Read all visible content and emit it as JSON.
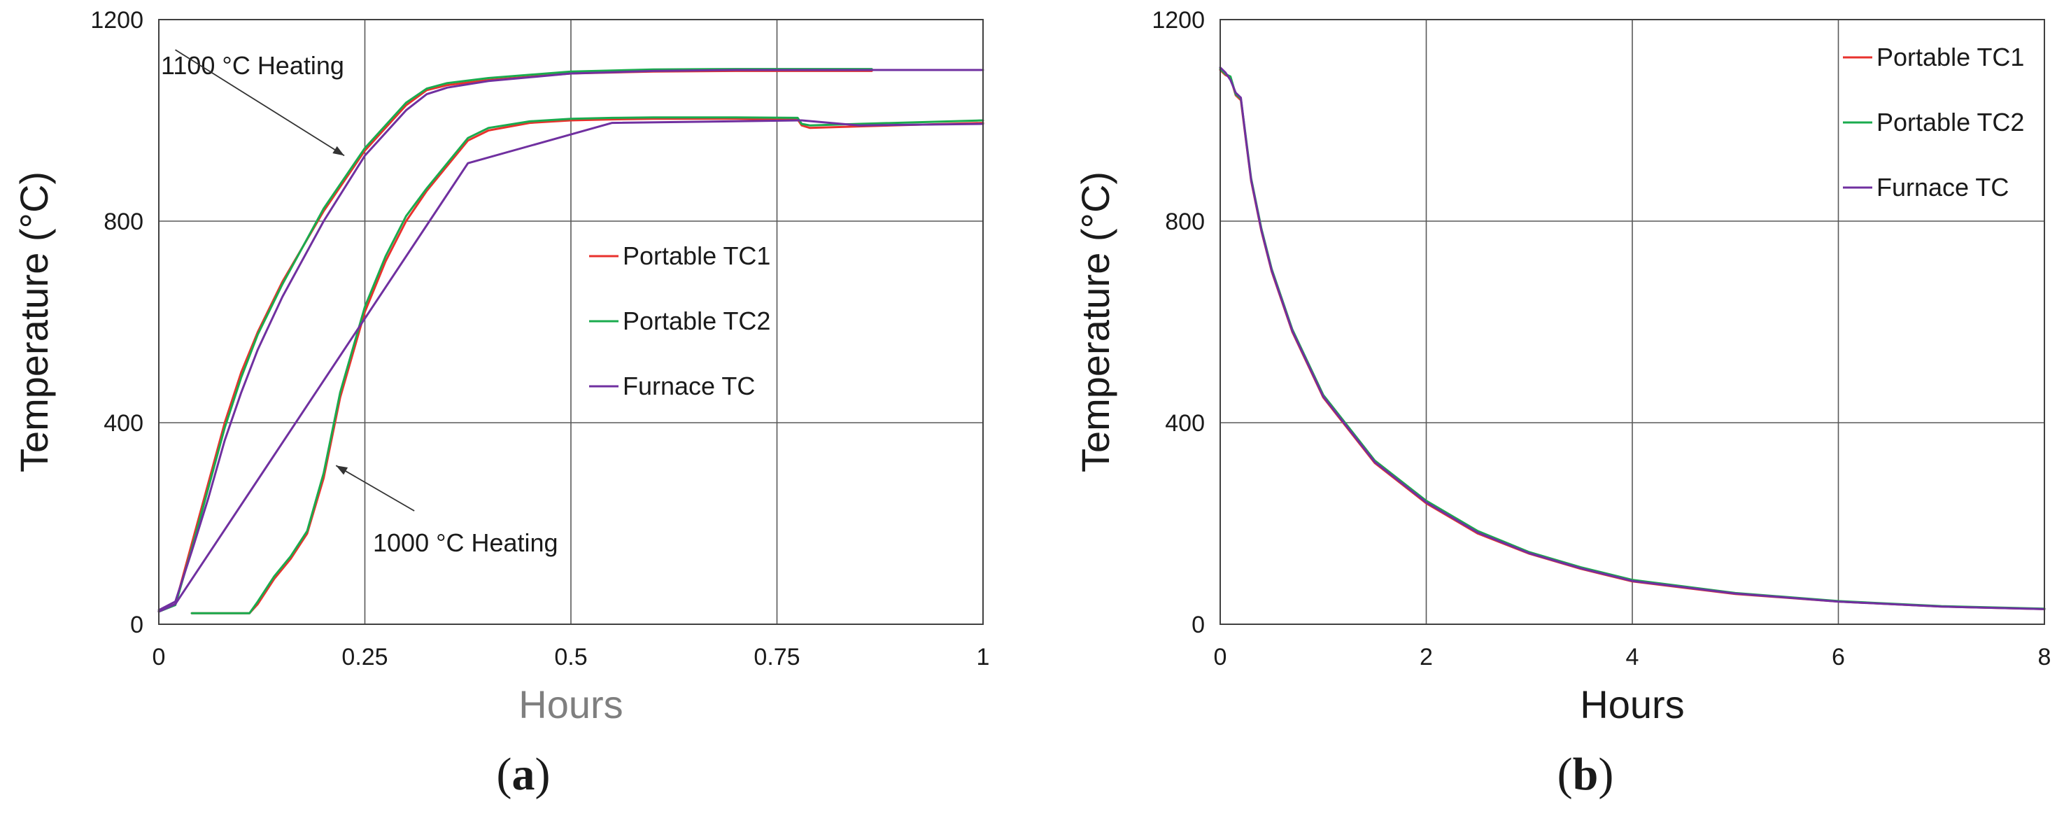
{
  "chart_data": [
    {
      "id": "a",
      "type": "line",
      "panel_label": {
        "open": "(",
        "letter": "a",
        "close": ")"
      },
      "xlabel": "Hours",
      "ylabel": "Temperature (°C)",
      "xlim": [
        0,
        1
      ],
      "ylim": [
        0,
        1200
      ],
      "xticks": [
        0,
        0.25,
        0.5,
        0.75,
        1
      ],
      "xtick_labels": [
        "0",
        "0.25",
        "0.5",
        "0.75",
        "1"
      ],
      "yticks": [
        0,
        400,
        800,
        1200
      ],
      "ytick_labels": [
        "0",
        "400",
        "800",
        "1200"
      ],
      "grid": true,
      "legend": {
        "placement": "center-right",
        "entries": [
          "Portable TC1",
          "Portable TC2",
          "Furnace TC"
        ]
      },
      "annotations": [
        {
          "text": "1100 °C Heating",
          "from": [
            0.02,
            1140
          ],
          "to": [
            0.225,
            930
          ]
        },
        {
          "text": "1000 °C Heating",
          "from": [
            0.31,
            225
          ],
          "to": [
            0.215,
            315
          ]
        }
      ],
      "series": [
        {
          "name": "Portable TC1",
          "color": "#e8322d",
          "x": [
            0,
            0.02,
            0.04,
            0.06,
            0.08,
            0.1,
            0.12,
            0.15,
            0.2,
            0.25,
            0.3,
            0.325,
            0.35,
            0.4,
            0.5,
            0.6,
            0.7,
            0.8,
            0.865
          ],
          "y": [
            25,
            40,
            160,
            280,
            400,
            500,
            580,
            680,
            820,
            940,
            1030,
            1060,
            1070,
            1080,
            1093,
            1097,
            1098,
            1098,
            1098
          ]
        },
        {
          "name": "Portable TC1",
          "color": "#e8322d",
          "x": [
            0.04,
            0.11,
            0.12,
            0.14,
            0.16,
            0.18,
            0.2,
            0.22,
            0.25,
            0.275,
            0.3,
            0.325,
            0.35,
            0.375,
            0.4,
            0.45,
            0.5,
            0.55,
            0.6,
            0.7,
            0.775,
            0.78,
            0.79,
            0.85,
            1
          ],
          "y": [
            22,
            22,
            40,
            90,
            130,
            180,
            290,
            450,
            620,
            720,
            800,
            860,
            910,
            960,
            980,
            995,
            1000,
            1002,
            1003,
            1003,
            1002,
            990,
            985,
            988,
            995
          ]
        },
        {
          "name": "Portable TC2",
          "color": "#1aab4e",
          "x": [
            0,
            0.02,
            0.04,
            0.06,
            0.08,
            0.1,
            0.12,
            0.15,
            0.2,
            0.25,
            0.3,
            0.325,
            0.35,
            0.4,
            0.5,
            0.6,
            0.7,
            0.8,
            0.865
          ],
          "y": [
            25,
            38,
            150,
            270,
            390,
            490,
            575,
            675,
            825,
            945,
            1035,
            1063,
            1074,
            1084,
            1097,
            1101,
            1102,
            1102,
            1102
          ]
        },
        {
          "name": "Portable TC2",
          "color": "#1aab4e",
          "x": [
            0.04,
            0.11,
            0.12,
            0.14,
            0.16,
            0.18,
            0.2,
            0.22,
            0.25,
            0.275,
            0.3,
            0.325,
            0.35,
            0.375,
            0.4,
            0.45,
            0.5,
            0.55,
            0.6,
            0.7,
            0.775,
            0.78,
            0.79,
            0.85,
            1
          ],
          "y": [
            22,
            22,
            45,
            95,
            135,
            185,
            300,
            460,
            630,
            730,
            810,
            865,
            915,
            965,
            985,
            998,
            1003,
            1005,
            1006,
            1006,
            1005,
            993,
            990,
            993,
            1000
          ]
        },
        {
          "name": "Furnace TC",
          "color": "#7030a0",
          "x": [
            0,
            0.02,
            0.04,
            0.06,
            0.08,
            0.1,
            0.12,
            0.15,
            0.2,
            0.25,
            0.3,
            0.325,
            0.35,
            0.4,
            0.5,
            0.6,
            0.7,
            0.8,
            0.9,
            1
          ],
          "y": [
            28,
            45,
            145,
            250,
            365,
            460,
            545,
            650,
            800,
            930,
            1020,
            1052,
            1065,
            1078,
            1093,
            1098,
            1100,
            1100,
            1100,
            1100
          ]
        },
        {
          "name": "Furnace TC",
          "color": "#7030a0",
          "x": [
            0,
            0.02,
            0.375,
            0.55,
            0.78,
            0.85,
            1
          ],
          "y": [
            25,
            40,
            915,
            995,
            1000,
            990,
            993
          ]
        }
      ]
    },
    {
      "id": "b",
      "type": "line",
      "panel_label": {
        "open": "(",
        "letter": "b",
        "close": ")"
      },
      "xlabel": "Hours",
      "ylabel": "Temperature (°C)",
      "xlim": [
        0,
        8
      ],
      "ylim": [
        0,
        1200
      ],
      "xticks": [
        0,
        2,
        4,
        6,
        8
      ],
      "xtick_labels": [
        "0",
        "2",
        "4",
        "6",
        "8"
      ],
      "yticks": [
        0,
        400,
        800,
        1200
      ],
      "ytick_labels": [
        "0",
        "400",
        "800",
        "1200"
      ],
      "grid": true,
      "legend": {
        "placement": "top-right",
        "entries": [
          "Portable TC1",
          "Portable TC2",
          "Furnace TC"
        ]
      },
      "series": [
        {
          "name": "Portable TC1",
          "color": "#e8322d",
          "x": [
            0,
            0.05,
            0.1,
            0.15,
            0.2,
            0.25,
            0.3,
            0.4,
            0.5,
            0.7,
            1,
            1.5,
            2,
            2.5,
            3,
            3.5,
            4,
            5,
            6,
            7,
            8
          ],
          "y": [
            1100,
            1090,
            1085,
            1050,
            1040,
            960,
            880,
            780,
            700,
            580,
            450,
            320,
            240,
            180,
            140,
            110,
            85,
            60,
            45,
            35,
            30
          ]
        },
        {
          "name": "Portable TC2",
          "color": "#1aab4e",
          "x": [
            0,
            0.05,
            0.1,
            0.15,
            0.2,
            0.25,
            0.3,
            0.4,
            0.5,
            0.7,
            1,
            1.5,
            2,
            2.5,
            3,
            3.5,
            4,
            5,
            6,
            7,
            8
          ],
          "y": [
            1102,
            1092,
            1087,
            1052,
            1043,
            965,
            885,
            785,
            705,
            585,
            455,
            325,
            245,
            185,
            143,
            113,
            88,
            62,
            46,
            36,
            31
          ]
        },
        {
          "name": "Furnace TC",
          "color": "#7030a0",
          "x": [
            0,
            0.05,
            0.1,
            0.15,
            0.2,
            0.25,
            0.3,
            0.4,
            0.5,
            0.7,
            1,
            1.5,
            2,
            2.5,
            3,
            3.5,
            4,
            5,
            6,
            7,
            8
          ],
          "y": [
            1105,
            1095,
            1080,
            1055,
            1045,
            962,
            882,
            782,
            702,
            582,
            452,
            322,
            242,
            182,
            141,
            111,
            86,
            61,
            45,
            35,
            30
          ]
        }
      ]
    }
  ]
}
